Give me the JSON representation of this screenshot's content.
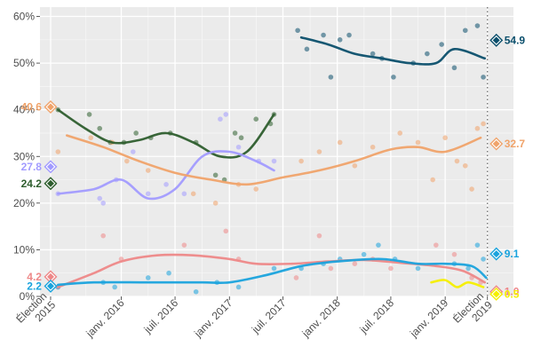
{
  "chart_data": {
    "type": "scatter",
    "title": "",
    "xlabel": "",
    "ylabel": "",
    "ylim": [
      0,
      62
    ],
    "xlim": [
      "2015-04-01",
      "2019-08-20"
    ],
    "x_ticks": [
      {
        "date": "2015-05-07",
        "label": "Élection 2015"
      },
      {
        "date": "2016-01-01",
        "label": "janv. 2016"
      },
      {
        "date": "2016-07-01",
        "label": "juil. 2016"
      },
      {
        "date": "2017-01-01",
        "label": "janv. 2017"
      },
      {
        "date": "2017-07-01",
        "label": "juil. 2017"
      },
      {
        "date": "2018-01-01",
        "label": "janv. 2018"
      },
      {
        "date": "2018-07-01",
        "label": "juil. 2018"
      },
      {
        "date": "2019-01-01",
        "label": "janv. 2019"
      },
      {
        "date": "2019-05-24",
        "label": "Élection 2019"
      }
    ],
    "y_ticks": [
      {
        "value": 0,
        "label": "0%"
      },
      {
        "value": 10,
        "label": "10%"
      },
      {
        "value": 20,
        "label": "20%"
      },
      {
        "value": 30,
        "label": "30%"
      },
      {
        "value": 40,
        "label": "40%"
      },
      {
        "value": 50,
        "label": "50%"
      },
      {
        "value": 60,
        "label": "60%"
      }
    ],
    "election_marker_date": "2019-05-24",
    "grid": true,
    "background": "#ebebeb",
    "series": [
      {
        "color": "#2e5e2e",
        "result_2015": 24.2,
        "result_2015_label": "24.2",
        "trend": [
          [
            "2015-06-01",
            40
          ],
          [
            "2015-09-01",
            36
          ],
          [
            "2015-12-01",
            33
          ],
          [
            "2016-03-01",
            33.5
          ],
          [
            "2016-06-01",
            35
          ],
          [
            "2016-09-01",
            33
          ],
          [
            "2016-12-01",
            30
          ],
          [
            "2017-03-01",
            31
          ],
          [
            "2017-06-01",
            39
          ]
        ],
        "polls": [
          [
            "2015-06-01",
            40
          ],
          [
            "2015-09-15",
            39
          ],
          [
            "2015-10-20",
            36
          ],
          [
            "2015-11-25",
            33
          ],
          [
            "2016-01-10",
            33
          ],
          [
            "2016-02-20",
            35
          ],
          [
            "2016-04-10",
            34
          ],
          [
            "2016-06-15",
            35
          ],
          [
            "2016-09-10",
            33
          ],
          [
            "2016-11-15",
            26
          ],
          [
            "2016-12-15",
            25
          ],
          [
            "2017-01-20",
            35
          ],
          [
            "2017-02-10",
            34
          ],
          [
            "2017-04-01",
            38
          ],
          [
            "2017-05-20",
            37
          ],
          [
            "2017-06-01",
            39
          ]
        ]
      },
      {
        "color": "#a29bff",
        "result_2015": 27.8,
        "result_2015_label": "27.8",
        "trend": [
          [
            "2015-06-01",
            22
          ],
          [
            "2015-10-01",
            23
          ],
          [
            "2016-01-01",
            25
          ],
          [
            "2016-04-01",
            21
          ],
          [
            "2016-07-01",
            23
          ],
          [
            "2016-10-01",
            30
          ],
          [
            "2017-01-01",
            31
          ],
          [
            "2017-04-01",
            29
          ],
          [
            "2017-06-01",
            27
          ]
        ],
        "polls": [
          [
            "2015-06-01",
            22
          ],
          [
            "2015-10-20",
            21
          ],
          [
            "2015-11-01",
            20
          ],
          [
            "2015-12-15",
            25
          ],
          [
            "2016-02-10",
            31
          ],
          [
            "2016-04-01",
            22
          ],
          [
            "2016-06-01",
            24
          ],
          [
            "2016-08-01",
            22
          ],
          [
            "2016-12-01",
            38
          ],
          [
            "2016-12-20",
            39
          ],
          [
            "2017-02-01",
            32
          ],
          [
            "2017-04-10",
            29
          ],
          [
            "2017-06-01",
            29
          ]
        ]
      },
      {
        "color": "#f0a36a",
        "result_2015": 40.6,
        "result_2015_label": "40.6",
        "result_2019": 32.7,
        "result_2019_label": "32.7",
        "trend": [
          [
            "2015-07-01",
            34.5
          ],
          [
            "2015-11-01",
            32
          ],
          [
            "2016-03-01",
            29
          ],
          [
            "2016-07-01",
            26.5
          ],
          [
            "2016-11-01",
            25
          ],
          [
            "2017-03-01",
            24
          ],
          [
            "2017-07-01",
            25.5
          ],
          [
            "2017-11-01",
            27
          ],
          [
            "2018-03-01",
            29
          ],
          [
            "2018-07-01",
            31.5
          ],
          [
            "2018-10-01",
            32
          ],
          [
            "2019-01-01",
            31
          ],
          [
            "2019-05-01",
            34
          ]
        ],
        "polls": [
          [
            "2015-06-01",
            31
          ],
          [
            "2015-09-20",
            34
          ],
          [
            "2015-12-01",
            33
          ],
          [
            "2016-01-20",
            29
          ],
          [
            "2016-04-01",
            27
          ],
          [
            "2016-09-01",
            22
          ],
          [
            "2016-11-15",
            20
          ],
          [
            "2017-02-01",
            24
          ],
          [
            "2017-04-01",
            23
          ],
          [
            "2017-09-01",
            29
          ],
          [
            "2017-11-01",
            31
          ],
          [
            "2018-01-10",
            33
          ],
          [
            "2018-03-01",
            28
          ],
          [
            "2018-05-01",
            32
          ],
          [
            "2018-08-01",
            35
          ],
          [
            "2018-10-01",
            33
          ],
          [
            "2018-11-20",
            25
          ],
          [
            "2019-01-01",
            34
          ],
          [
            "2019-02-10",
            29
          ],
          [
            "2019-03-10",
            28
          ],
          [
            "2019-04-01",
            23
          ],
          [
            "2019-04-20",
            36
          ],
          [
            "2019-05-10",
            37
          ]
        ]
      },
      {
        "color": "#ee8888",
        "result_2015": 4.2,
        "result_2015_label": "4.2",
        "result_2019": 1.0,
        "result_2019_label": "1.0",
        "trend": [
          [
            "2015-06-01",
            2
          ],
          [
            "2015-10-01",
            5
          ],
          [
            "2016-01-01",
            7.5
          ],
          [
            "2016-05-01",
            8.8
          ],
          [
            "2016-09-01",
            8.8
          ],
          [
            "2017-01-01",
            8
          ],
          [
            "2017-04-01",
            7
          ],
          [
            "2017-08-01",
            7
          ],
          [
            "2017-12-01",
            7.5
          ],
          [
            "2018-04-01",
            7.8
          ],
          [
            "2018-08-01",
            7.2
          ],
          [
            "2018-12-01",
            6.5
          ],
          [
            "2019-03-01",
            5.5
          ],
          [
            "2019-05-15",
            3
          ]
        ],
        "polls": [
          [
            "2015-06-01",
            2
          ],
          [
            "2015-11-01",
            13
          ],
          [
            "2016-01-01",
            8
          ],
          [
            "2016-08-01",
            11
          ],
          [
            "2016-12-20",
            14
          ],
          [
            "2017-02-01",
            8
          ],
          [
            "2017-08-15",
            4
          ],
          [
            "2017-11-01",
            13
          ],
          [
            "2017-12-10",
            6
          ],
          [
            "2018-03-01",
            7
          ],
          [
            "2018-05-01",
            8
          ],
          [
            "2018-07-01",
            6
          ],
          [
            "2018-12-01",
            11
          ],
          [
            "2019-02-01",
            9
          ],
          [
            "2019-04-01",
            4
          ],
          [
            "2019-05-01",
            3
          ]
        ]
      },
      {
        "color": "#1aa3dd",
        "result_2015": 2.2,
        "result_2015_label": "2.2",
        "result_2019": 9.1,
        "result_2019_label": "9.1",
        "trend": [
          [
            "2015-06-01",
            2.5
          ],
          [
            "2015-10-01",
            3
          ],
          [
            "2016-04-01",
            3
          ],
          [
            "2016-10-01",
            3
          ],
          [
            "2017-01-01",
            3
          ],
          [
            "2017-05-01",
            4.5
          ],
          [
            "2017-09-01",
            6.5
          ],
          [
            "2018-01-01",
            7.5
          ],
          [
            "2018-06-01",
            8
          ],
          [
            "2018-10-01",
            7
          ],
          [
            "2019-01-01",
            7
          ],
          [
            "2019-04-01",
            6.5
          ],
          [
            "2019-05-20",
            4
          ]
        ],
        "polls": [
          [
            "2015-06-01",
            2
          ],
          [
            "2015-11-01",
            3
          ],
          [
            "2015-12-10",
            2
          ],
          [
            "2016-04-01",
            4
          ],
          [
            "2016-06-10",
            5
          ],
          [
            "2016-09-10",
            1
          ],
          [
            "2016-11-20",
            3
          ],
          [
            "2017-02-01",
            2
          ],
          [
            "2017-06-01",
            6
          ],
          [
            "2017-09-01",
            6
          ],
          [
            "2017-11-15",
            7
          ],
          [
            "2018-01-10",
            8
          ],
          [
            "2018-04-01",
            9
          ],
          [
            "2018-05-20",
            11
          ],
          [
            "2018-07-15",
            8
          ],
          [
            "2018-10-01",
            6
          ],
          [
            "2019-02-01",
            7
          ],
          [
            "2019-03-20",
            6
          ],
          [
            "2019-04-20",
            11
          ],
          [
            "2019-05-10",
            8
          ]
        ]
      },
      {
        "color": "#0b4f6c",
        "result_2019": 54.9,
        "result_2019_label": "54.9",
        "trend": [
          [
            "2017-09-01",
            55.5
          ],
          [
            "2017-12-01",
            54
          ],
          [
            "2018-03-01",
            52
          ],
          [
            "2018-06-01",
            51
          ],
          [
            "2018-09-01",
            50
          ],
          [
            "2018-12-01",
            50
          ],
          [
            "2019-02-01",
            53
          ],
          [
            "2019-05-15",
            51
          ]
        ],
        "polls": [
          [
            "2017-08-20",
            57
          ],
          [
            "2017-09-20",
            53
          ],
          [
            "2017-11-15",
            56
          ],
          [
            "2017-12-10",
            47
          ],
          [
            "2018-01-10",
            55
          ],
          [
            "2018-02-10",
            56
          ],
          [
            "2018-05-01",
            52
          ],
          [
            "2018-06-01",
            51
          ],
          [
            "2018-07-10",
            47
          ],
          [
            "2018-09-15",
            50
          ],
          [
            "2018-11-01",
            52
          ],
          [
            "2018-12-20",
            54
          ],
          [
            "2019-02-01",
            49
          ],
          [
            "2019-03-10",
            57
          ],
          [
            "2019-04-20",
            58
          ],
          [
            "2019-05-10",
            47
          ]
        ]
      },
      {
        "color": "#f5ef00",
        "result_2019": 0.5,
        "result_2019_label": "0.5",
        "trend": [
          [
            "2018-11-15",
            3
          ],
          [
            "2019-01-01",
            3.5
          ],
          [
            "2019-02-10",
            2
          ],
          [
            "2019-03-20",
            3
          ],
          [
            "2019-05-10",
            2
          ]
        ],
        "polls": []
      }
    ]
  }
}
